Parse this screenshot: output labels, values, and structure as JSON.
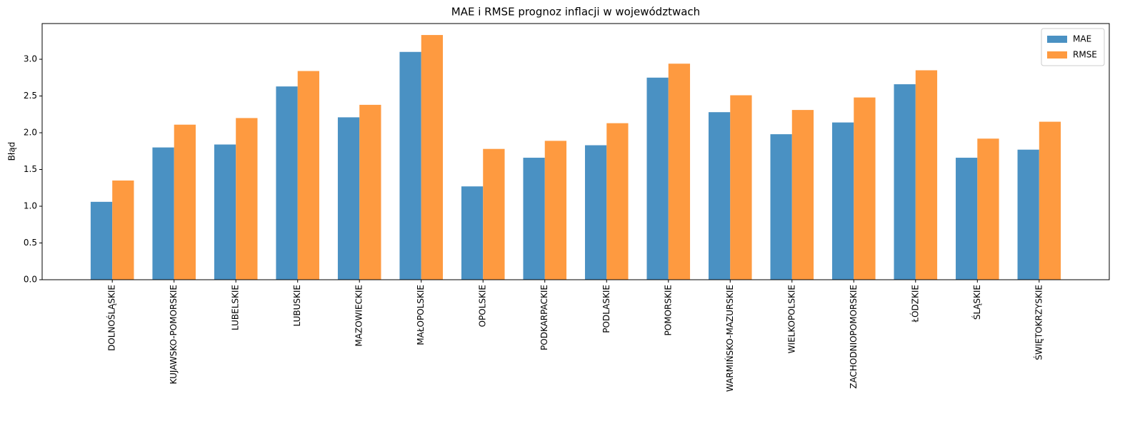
{
  "chart_data": {
    "type": "bar",
    "title": "MAE i RMSE prognoz inflacji w województwach",
    "y_label": "Błąd",
    "categories": [
      "DOLNOŚLĄSKIE",
      "KUJAWSKO-POMORSKIE",
      "LUBELSKIE",
      "LUBUSKIE",
      "MAZOWIECKIE",
      "MAŁOPOLSKIE",
      "OPOLSKIE",
      "PODKARPACKIE",
      "PODLASKIE",
      "POMORSKIE",
      "WARMIŃSKO-MAZURSKIE",
      "WIELKOPOLSKIE",
      "ZACHODNIOPOMORSKIE",
      "ŁÓDZKIE",
      "ŚLĄSKIE",
      "ŚWIĘTOKRZYSKIE"
    ],
    "series": [
      {
        "name": "MAE",
        "color": "#4a91c3",
        "values": [
          1.06,
          1.8,
          1.84,
          2.63,
          2.21,
          3.1,
          1.27,
          1.66,
          1.83,
          2.75,
          2.28,
          1.98,
          2.14,
          2.66,
          1.66,
          1.77
        ]
      },
      {
        "name": "RMSE",
        "color": "#fe9a40",
        "values": [
          1.35,
          2.11,
          2.2,
          2.84,
          2.38,
          3.33,
          1.78,
          1.89,
          2.13,
          2.94,
          2.51,
          2.31,
          2.48,
          2.85,
          1.92,
          2.15
        ]
      }
    ],
    "ylim": [
      0,
      3.486
    ],
    "yticks": [
      {
        "value": 0,
        "label": "0.0"
      },
      {
        "value": 0.5,
        "label": "0.5"
      },
      {
        "value": 1,
        "label": "1.0"
      },
      {
        "value": 1.5,
        "label": "1.5"
      },
      {
        "value": 2,
        "label": "2.0"
      },
      {
        "value": 2.5,
        "label": "2.5"
      },
      {
        "value": 3,
        "label": "3.0"
      }
    ],
    "legend": "upper right",
    "grid": false
  }
}
